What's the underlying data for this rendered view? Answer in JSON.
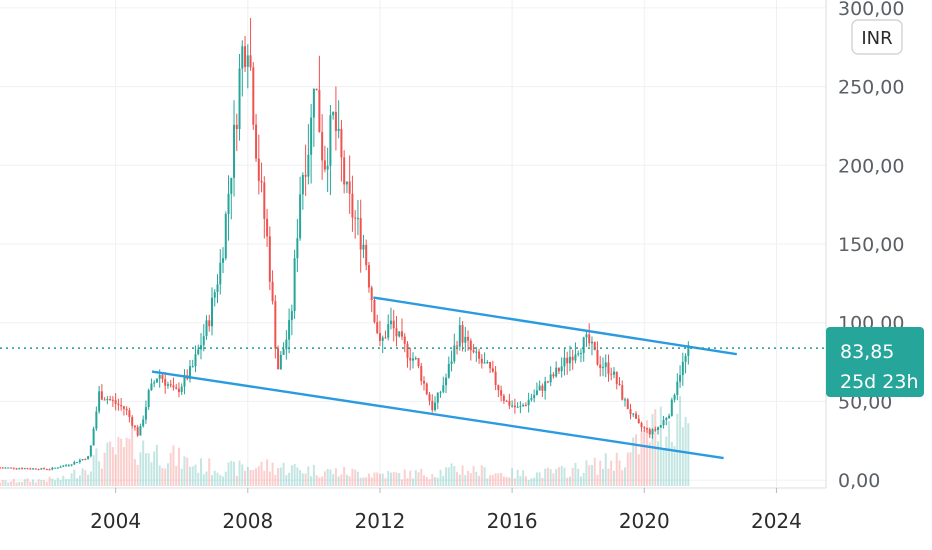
{
  "chart_data": {
    "type": "candlestick",
    "currency": "INR",
    "x_axis": {
      "ticks": [
        "2004",
        "2008",
        "2012",
        "2016",
        "2020",
        "2024"
      ],
      "range": [
        2000.5,
        2025.5
      ]
    },
    "y_axis": {
      "ticks": [
        "0,00",
        "50,00",
        "100,00",
        "150,00",
        "200,00",
        "250,00",
        "300,00"
      ],
      "tick_values": [
        0,
        50,
        100,
        150,
        200,
        250,
        300
      ],
      "range": [
        -5,
        305
      ]
    },
    "last_price": {
      "value": 83.85,
      "label": "83,85",
      "countdown": "25d 23h"
    },
    "grid": true,
    "colors": {
      "up": "#26a69a",
      "down": "#ef5350",
      "trendline": "#2a9be0",
      "price_tag": "#26a69a"
    },
    "trendlines": [
      {
        "name": "upper channel",
        "points": [
          [
            2011.8,
            116
          ],
          [
            2022.8,
            80
          ]
        ]
      },
      {
        "name": "lower channel",
        "points": [
          [
            2005.1,
            69
          ],
          [
            2022.4,
            14
          ]
        ]
      }
    ],
    "price_path": [
      [
        2000.5,
        8
      ],
      [
        2002.0,
        7
      ],
      [
        2002.6,
        10
      ],
      [
        2003.2,
        15
      ],
      [
        2003.5,
        55
      ],
      [
        2003.9,
        50
      ],
      [
        2004.3,
        45
      ],
      [
        2004.7,
        28
      ],
      [
        2005.0,
        55
      ],
      [
        2005.3,
        68
      ],
      [
        2005.8,
        55
      ],
      [
        2006.3,
        70
      ],
      [
        2006.8,
        100
      ],
      [
        2007.2,
        140
      ],
      [
        2007.6,
        220
      ],
      [
        2007.8,
        270
      ],
      [
        2008.0,
        285
      ],
      [
        2008.3,
        200
      ],
      [
        2008.6,
        150
      ],
      [
        2008.9,
        70
      ],
      [
        2009.3,
        100
      ],
      [
        2009.6,
        190
      ],
      [
        2009.9,
        220
      ],
      [
        2010.0,
        260
      ],
      [
        2010.3,
        200
      ],
      [
        2010.6,
        230
      ],
      [
        2011.0,
        180
      ],
      [
        2011.5,
        150
      ],
      [
        2011.8,
        110
      ],
      [
        2012.0,
        85
      ],
      [
        2012.3,
        100
      ],
      [
        2012.7,
        85
      ],
      [
        2013.1,
        75
      ],
      [
        2013.6,
        45
      ],
      [
        2014.0,
        65
      ],
      [
        2014.4,
        95
      ],
      [
        2014.8,
        80
      ],
      [
        2015.3,
        70
      ],
      [
        2015.8,
        50
      ],
      [
        2016.2,
        45
      ],
      [
        2016.7,
        55
      ],
      [
        2017.2,
        65
      ],
      [
        2017.6,
        75
      ],
      [
        2018.0,
        85
      ],
      [
        2018.3,
        88
      ],
      [
        2018.6,
        75
      ],
      [
        2019.0,
        70
      ],
      [
        2019.4,
        50
      ],
      [
        2019.8,
        35
      ],
      [
        2020.2,
        30
      ],
      [
        2020.5,
        35
      ],
      [
        2020.8,
        45
      ],
      [
        2021.0,
        65
      ],
      [
        2021.3,
        80
      ],
      [
        2021.4,
        84
      ]
    ],
    "volume_path": [
      [
        2000.5,
        3
      ],
      [
        2002.5,
        5
      ],
      [
        2003.5,
        20
      ],
      [
        2004.5,
        28
      ],
      [
        2005.5,
        22
      ],
      [
        2006.5,
        14
      ],
      [
        2007.5,
        12
      ],
      [
        2008.5,
        14
      ],
      [
        2009.5,
        12
      ],
      [
        2010.5,
        10
      ],
      [
        2011.5,
        9
      ],
      [
        2012.5,
        8
      ],
      [
        2013.5,
        9
      ],
      [
        2014.5,
        12
      ],
      [
        2015.5,
        9
      ],
      [
        2016.5,
        8
      ],
      [
        2017.5,
        10
      ],
      [
        2018.5,
        14
      ],
      [
        2019.5,
        20
      ],
      [
        2020.2,
        40
      ],
      [
        2020.8,
        45
      ],
      [
        2021.2,
        55
      ],
      [
        2021.4,
        35
      ]
    ],
    "volume_max": 60
  }
}
